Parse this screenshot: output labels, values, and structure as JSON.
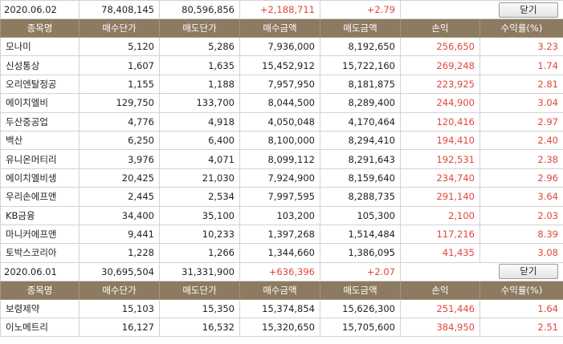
{
  "headers": [
    "종목명",
    "매수단가",
    "매도단가",
    "매수금액",
    "매도금액",
    "손익",
    "수익률(%)"
  ],
  "close_label": "닫기",
  "groups": [
    {
      "date": "2020.06.02",
      "buy_total": "78,408,145",
      "sell_total": "80,596,856",
      "profit": "+2,188,711",
      "rate": "+2.79",
      "rows": [
        {
          "name": "모나미",
          "buy_price": "5,120",
          "sell_price": "5,286",
          "buy_amount": "7,936,000",
          "sell_amount": "8,192,650",
          "profit": "256,650",
          "rate": "3.23"
        },
        {
          "name": "신성통상",
          "buy_price": "1,607",
          "sell_price": "1,635",
          "buy_amount": "15,452,912",
          "sell_amount": "15,722,160",
          "profit": "269,248",
          "rate": "1.74"
        },
        {
          "name": "오리엔탈정공",
          "buy_price": "1,155",
          "sell_price": "1,188",
          "buy_amount": "7,957,950",
          "sell_amount": "8,181,875",
          "profit": "223,925",
          "rate": "2.81"
        },
        {
          "name": "에이치엘비",
          "buy_price": "129,750",
          "sell_price": "133,700",
          "buy_amount": "8,044,500",
          "sell_amount": "8,289,400",
          "profit": "244,900",
          "rate": "3.04"
        },
        {
          "name": "두산중공업",
          "buy_price": "4,776",
          "sell_price": "4,918",
          "buy_amount": "4,050,048",
          "sell_amount": "4,170,464",
          "profit": "120,416",
          "rate": "2.97"
        },
        {
          "name": "백산",
          "buy_price": "6,250",
          "sell_price": "6,400",
          "buy_amount": "8,100,000",
          "sell_amount": "8,294,410",
          "profit": "194,410",
          "rate": "2.40"
        },
        {
          "name": "유니온머티리",
          "buy_price": "3,976",
          "sell_price": "4,071",
          "buy_amount": "8,099,112",
          "sell_amount": "8,291,643",
          "profit": "192,531",
          "rate": "2.38"
        },
        {
          "name": "에이치엘비생",
          "buy_price": "20,425",
          "sell_price": "21,030",
          "buy_amount": "7,924,900",
          "sell_amount": "8,159,640",
          "profit": "234,740",
          "rate": "2.96"
        },
        {
          "name": "우리손에프앤",
          "buy_price": "2,445",
          "sell_price": "2,534",
          "buy_amount": "7,997,595",
          "sell_amount": "8,288,735",
          "profit": "291,140",
          "rate": "3.64"
        },
        {
          "name": "KB금융",
          "buy_price": "34,400",
          "sell_price": "35,100",
          "buy_amount": "103,200",
          "sell_amount": "105,300",
          "profit": "2,100",
          "rate": "2.03"
        },
        {
          "name": "마니커에프앤",
          "buy_price": "9,441",
          "sell_price": "10,233",
          "buy_amount": "1,397,268",
          "sell_amount": "1,514,484",
          "profit": "117,216",
          "rate": "8.39"
        },
        {
          "name": "토박스코리아",
          "buy_price": "1,228",
          "sell_price": "1,266",
          "buy_amount": "1,344,660",
          "sell_amount": "1,386,095",
          "profit": "41,435",
          "rate": "3.08"
        }
      ]
    },
    {
      "date": "2020.06.01",
      "buy_total": "30,695,504",
      "sell_total": "31,331,900",
      "profit": "+636,396",
      "rate": "+2.07",
      "rows": [
        {
          "name": "보령제약",
          "buy_price": "15,103",
          "sell_price": "15,350",
          "buy_amount": "15,374,854",
          "sell_amount": "15,626,300",
          "profit": "251,446",
          "rate": "1.64"
        },
        {
          "name": "이노메트리",
          "buy_price": "16,127",
          "sell_price": "16,532",
          "buy_amount": "15,320,650",
          "sell_amount": "15,705,600",
          "profit": "384,950",
          "rate": "2.51"
        }
      ]
    }
  ],
  "colors": {
    "header_bg": "#8c7a61",
    "profit_red": "#e0463c",
    "border": "#d3d3d3"
  }
}
